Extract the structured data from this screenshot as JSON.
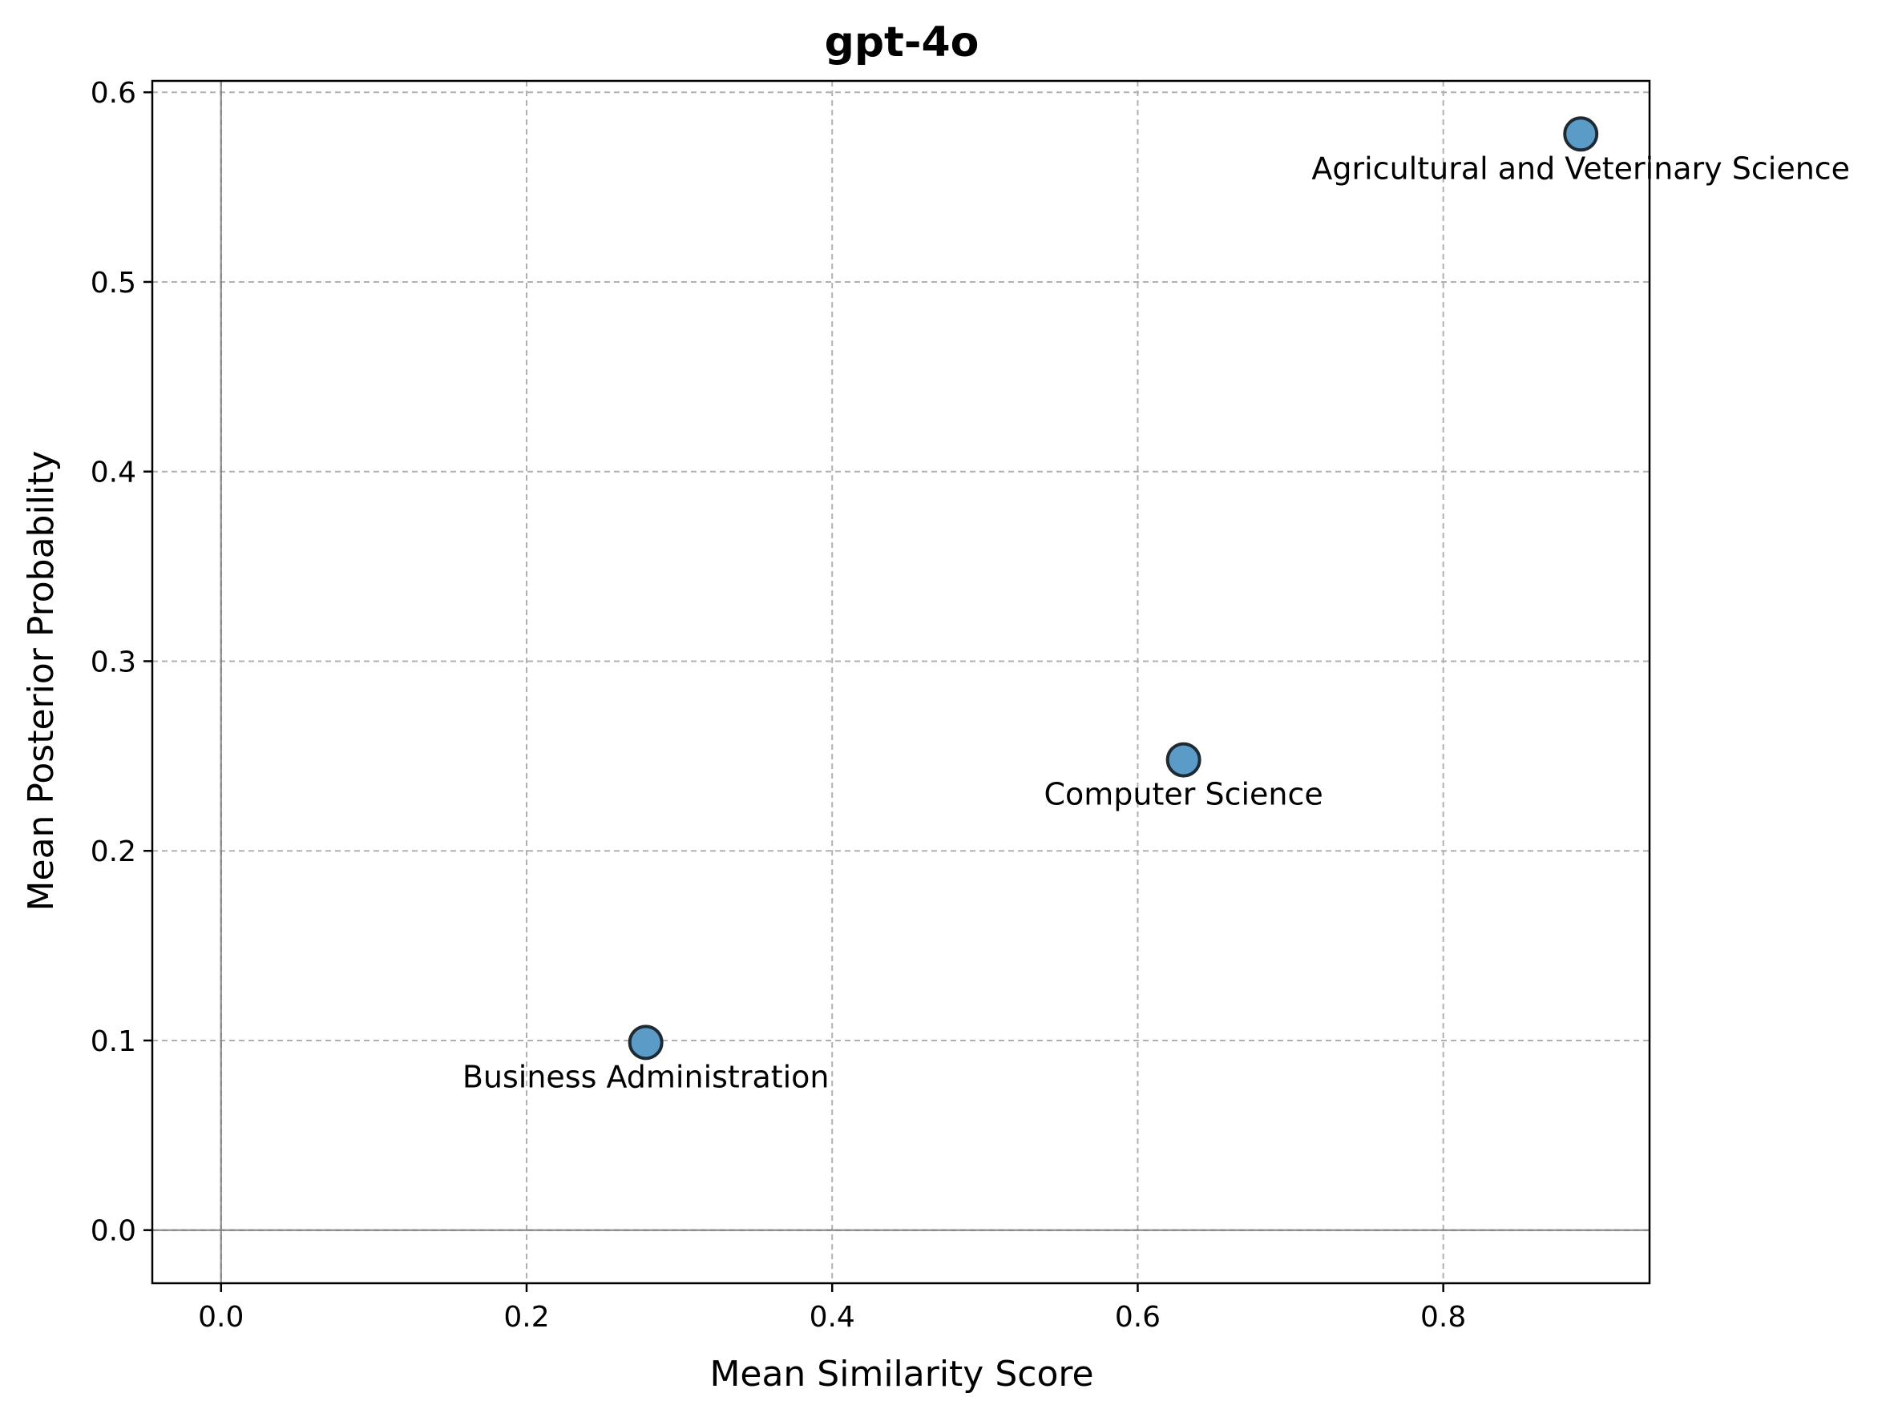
{
  "chart_data": {
    "type": "scatter",
    "title": "gpt-4o",
    "xlabel": "Mean Similarity Score",
    "ylabel": "Mean Posterior Probability",
    "xlim": [
      -0.045,
      0.935
    ],
    "ylim": [
      -0.028,
      0.606
    ],
    "xticks": [
      0.0,
      0.2,
      0.4,
      0.6,
      0.8
    ],
    "yticks": [
      0.0,
      0.1,
      0.2,
      0.3,
      0.4,
      0.5,
      0.6
    ],
    "xtick_labels": [
      "0.0",
      "0.2",
      "0.4",
      "0.6",
      "0.8"
    ],
    "ytick_labels": [
      "0.0",
      "0.1",
      "0.2",
      "0.3",
      "0.4",
      "0.5",
      "0.6"
    ],
    "grid": true,
    "marker_color": "#5b9bc8",
    "marker_edge_color": "#1f2a33",
    "points": [
      {
        "label": "Business Administration",
        "x": 0.278,
        "y": 0.099
      },
      {
        "label": "Computer Science",
        "x": 0.63,
        "y": 0.248
      },
      {
        "label": "Agricultural and Veterinary Science",
        "x": 0.89,
        "y": 0.578
      }
    ]
  }
}
